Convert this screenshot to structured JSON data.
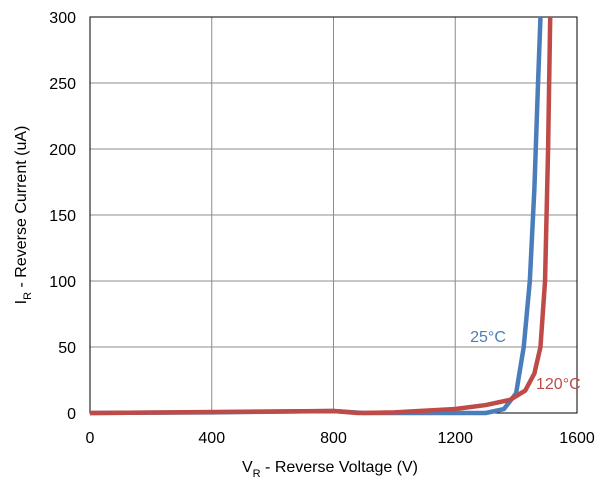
{
  "chart_data": {
    "type": "line",
    "x_label": {
      "text": "V",
      "subscript": "R",
      "rest": " - Reverse Voltage (V)"
    },
    "y_label": {
      "text": "I",
      "subscript": "R",
      "rest": " - Reverse Current (uA)"
    },
    "xlim": [
      0,
      1600
    ],
    "xticks": [
      0,
      400,
      800,
      1200,
      1600
    ],
    "ylim": [
      0,
      300
    ],
    "yticks": [
      0,
      50,
      100,
      150,
      200,
      250,
      300
    ],
    "grid": true,
    "series": [
      {
        "name": "25°C",
        "color": "#4a7ebb",
        "x": [
          0,
          400,
          800,
          900,
          1300,
          1360,
          1400,
          1425,
          1445,
          1460,
          1472,
          1480
        ],
        "values": [
          0,
          0.5,
          1.5,
          0,
          0,
          3,
          15,
          50,
          100,
          170,
          250,
          300
        ]
      },
      {
        "name": "120°C",
        "color": "#be4b48",
        "x": [
          0,
          800,
          880,
          1000,
          1200,
          1300,
          1380,
          1430,
          1460,
          1480,
          1495,
          1505,
          1512
        ],
        "values": [
          0,
          1.5,
          0,
          0.5,
          3,
          6,
          10,
          17,
          30,
          50,
          100,
          200,
          300
        ]
      }
    ]
  }
}
